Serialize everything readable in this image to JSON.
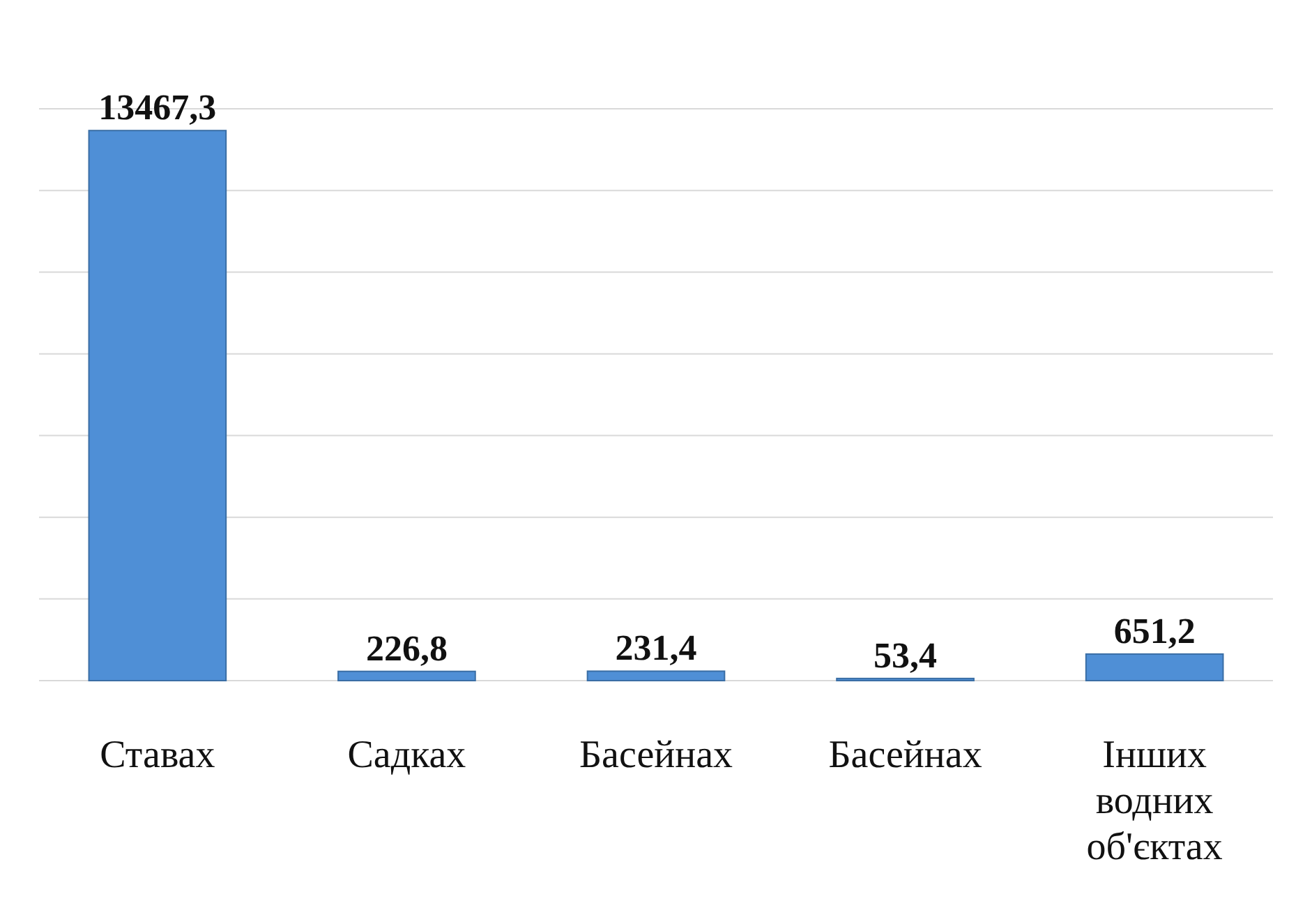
{
  "chart_data": {
    "type": "bar",
    "categories": [
      "Ставах",
      "Садках",
      "Басейнах",
      "Басейнах",
      "Інших водних об'єктах"
    ],
    "values": [
      13467.3,
      226.8,
      231.4,
      53.4,
      651.2
    ],
    "value_labels": [
      "13467,3",
      "226,8",
      "231,4",
      "53,4",
      "651,2"
    ],
    "color": "#4f8fd6",
    "ylim": [
      0,
      14000
    ],
    "yticks": [
      {
        "value": 0,
        "label": null
      },
      {
        "value": 2000,
        "label": null
      },
      {
        "value": 4000,
        "label": null
      },
      {
        "value": 6000,
        "label": null
      },
      {
        "value": 8000,
        "label": null
      },
      {
        "value": 10000,
        "label": null
      },
      {
        "value": 12000,
        "label": null
      },
      {
        "value": 14000,
        "label": null
      }
    ],
    "grid": "y",
    "tick_labels": "x"
  }
}
